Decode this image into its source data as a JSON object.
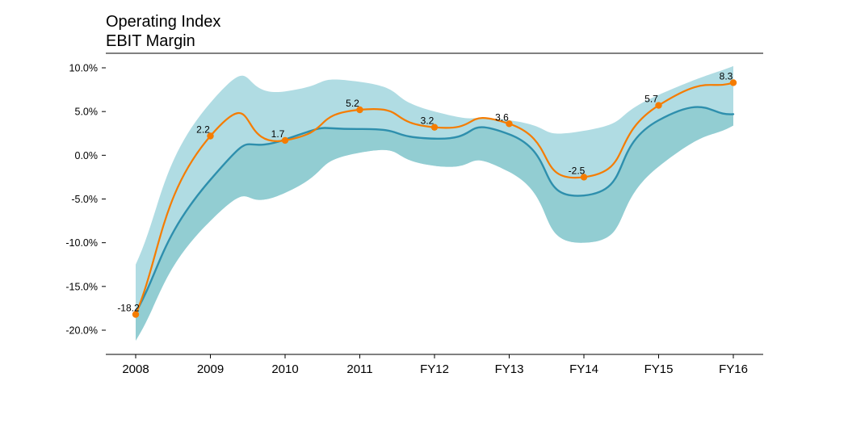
{
  "chart_data": {
    "type": "line",
    "title": "Operating Index",
    "subtitle": "EBIT Margin",
    "categories": [
      "2008",
      "2009",
      "2010",
      "2011",
      "FY12",
      "FY13",
      "FY14",
      "FY15",
      "FY16"
    ],
    "y_ticks": [
      10,
      5,
      0,
      -5,
      -10,
      -15,
      -20
    ],
    "y_tick_labels": [
      "10.0%",
      "5.0%",
      "0.0%",
      "-5.0%",
      "-10.0%",
      "-15.0%",
      "-20.0%"
    ],
    "ylim": [
      -22.5,
      11.5
    ],
    "series": [
      {
        "values": [
          -18.2,
          2.2,
          1.7,
          5.2,
          3.2,
          3.6,
          -2.5,
          5.7,
          8.3
        ],
        "labels": [
          "-18.2",
          "2.2",
          "1.7",
          "5.2",
          "3.2",
          "3.6",
          "-2.5",
          "5.7",
          "8.3"
        ],
        "color": "#f57c00",
        "markers": true
      },
      {
        "values": [
          -18.0,
          -2.8,
          1.8,
          3.0,
          1.9,
          2.4,
          -4.6,
          4.0,
          4.7
        ],
        "color": "#2e8fad",
        "markers": false
      }
    ],
    "bands": [
      {
        "upper": [
          -12.5,
          6.0,
          7.3,
          8.4,
          5.0,
          4.0,
          2.8,
          6.9,
          10.2
        ],
        "lower": [
          -21.2,
          -7.5,
          -4.3,
          0.3,
          -1.2,
          -1.9,
          -10.0,
          -1.3,
          3.4
        ],
        "color": "#b0dce3"
      },
      {
        "upper": [
          -18.0,
          -2.8,
          1.8,
          3.0,
          1.9,
          2.4,
          -4.6,
          4.0,
          4.7
        ],
        "lower": [
          -21.2,
          -7.5,
          -4.3,
          0.3,
          -1.2,
          -1.9,
          -10.0,
          -1.3,
          3.4
        ],
        "color": "#92cdd2"
      }
    ],
    "grid": false,
    "legend": "none"
  }
}
